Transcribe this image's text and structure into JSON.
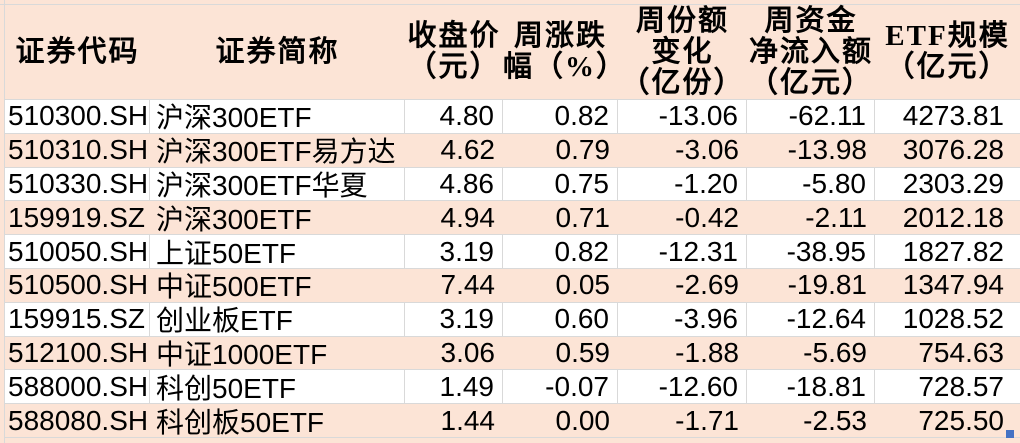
{
  "chart_data": {
    "type": "table",
    "columns": [
      {
        "id": "code",
        "label": "证券代码"
      },
      {
        "id": "name",
        "label": "证券简称"
      },
      {
        "id": "close",
        "label": "收盘价\n（元）"
      },
      {
        "id": "weekly_change_pct",
        "label": "周涨跌\n幅（%）"
      },
      {
        "id": "share_change_100m",
        "label": "周份额\n变化\n（亿份）"
      },
      {
        "id": "net_inflow_100m_cny",
        "label": "周资金\n净流入额\n（亿元）"
      },
      {
        "id": "etf_scale_100m_cny",
        "label": "ETF规模\n（亿元）"
      }
    ],
    "rows": [
      {
        "code": "510300.SH",
        "name": "沪深300ETF",
        "close": "4.80",
        "weekly_change_pct": "0.82",
        "share_change_100m": "-13.06",
        "net_inflow_100m_cny": "-62.11",
        "etf_scale_100m_cny": "4273.81"
      },
      {
        "code": "510310.SH",
        "name": "沪深300ETF易方达",
        "close": "4.62",
        "weekly_change_pct": "0.79",
        "share_change_100m": "-3.06",
        "net_inflow_100m_cny": "-13.98",
        "etf_scale_100m_cny": "3076.28"
      },
      {
        "code": "510330.SH",
        "name": "沪深300ETF华夏",
        "close": "4.86",
        "weekly_change_pct": "0.75",
        "share_change_100m": "-1.20",
        "net_inflow_100m_cny": "-5.80",
        "etf_scale_100m_cny": "2303.29"
      },
      {
        "code": "159919.SZ",
        "name": "沪深300ETF",
        "close": "4.94",
        "weekly_change_pct": "0.71",
        "share_change_100m": "-0.42",
        "net_inflow_100m_cny": "-2.11",
        "etf_scale_100m_cny": "2012.18"
      },
      {
        "code": "510050.SH",
        "name": "上证50ETF",
        "close": "3.19",
        "weekly_change_pct": "0.82",
        "share_change_100m": "-12.31",
        "net_inflow_100m_cny": "-38.95",
        "etf_scale_100m_cny": "1827.82"
      },
      {
        "code": "510500.SH",
        "name": "中证500ETF",
        "close": "7.44",
        "weekly_change_pct": "0.05",
        "share_change_100m": "-2.69",
        "net_inflow_100m_cny": "-19.81",
        "etf_scale_100m_cny": "1347.94"
      },
      {
        "code": "159915.SZ",
        "name": "创业板ETF",
        "close": "3.19",
        "weekly_change_pct": "0.60",
        "share_change_100m": "-3.96",
        "net_inflow_100m_cny": "-12.64",
        "etf_scale_100m_cny": "1028.52"
      },
      {
        "code": "512100.SH",
        "name": "中证1000ETF",
        "close": "3.06",
        "weekly_change_pct": "0.59",
        "share_change_100m": "-1.88",
        "net_inflow_100m_cny": "-5.69",
        "etf_scale_100m_cny": "754.63"
      },
      {
        "code": "588000.SH",
        "name": "科创50ETF",
        "close": "1.49",
        "weekly_change_pct": "-0.07",
        "share_change_100m": "-12.60",
        "net_inflow_100m_cny": "-18.81",
        "etf_scale_100m_cny": "728.57"
      },
      {
        "code": "588080.SH",
        "name": "科创板50ETF",
        "close": "1.44",
        "weekly_change_pct": "0.00",
        "share_change_100m": "-1.71",
        "net_inflow_100m_cny": "-2.53",
        "etf_scale_100m_cny": "725.50"
      }
    ],
    "layout": {
      "header_fill": "#fce4d6",
      "alt_row_fill": "#fce4d6",
      "base_row_fill": "#ffffff",
      "gridlines": true
    }
  },
  "style": {
    "fill_peach": "#fce4d6",
    "row_white": "#ffffff",
    "gridline": "#d9d9d9",
    "text_color": "#000000",
    "autofill_handle_color": "#4472c4"
  }
}
